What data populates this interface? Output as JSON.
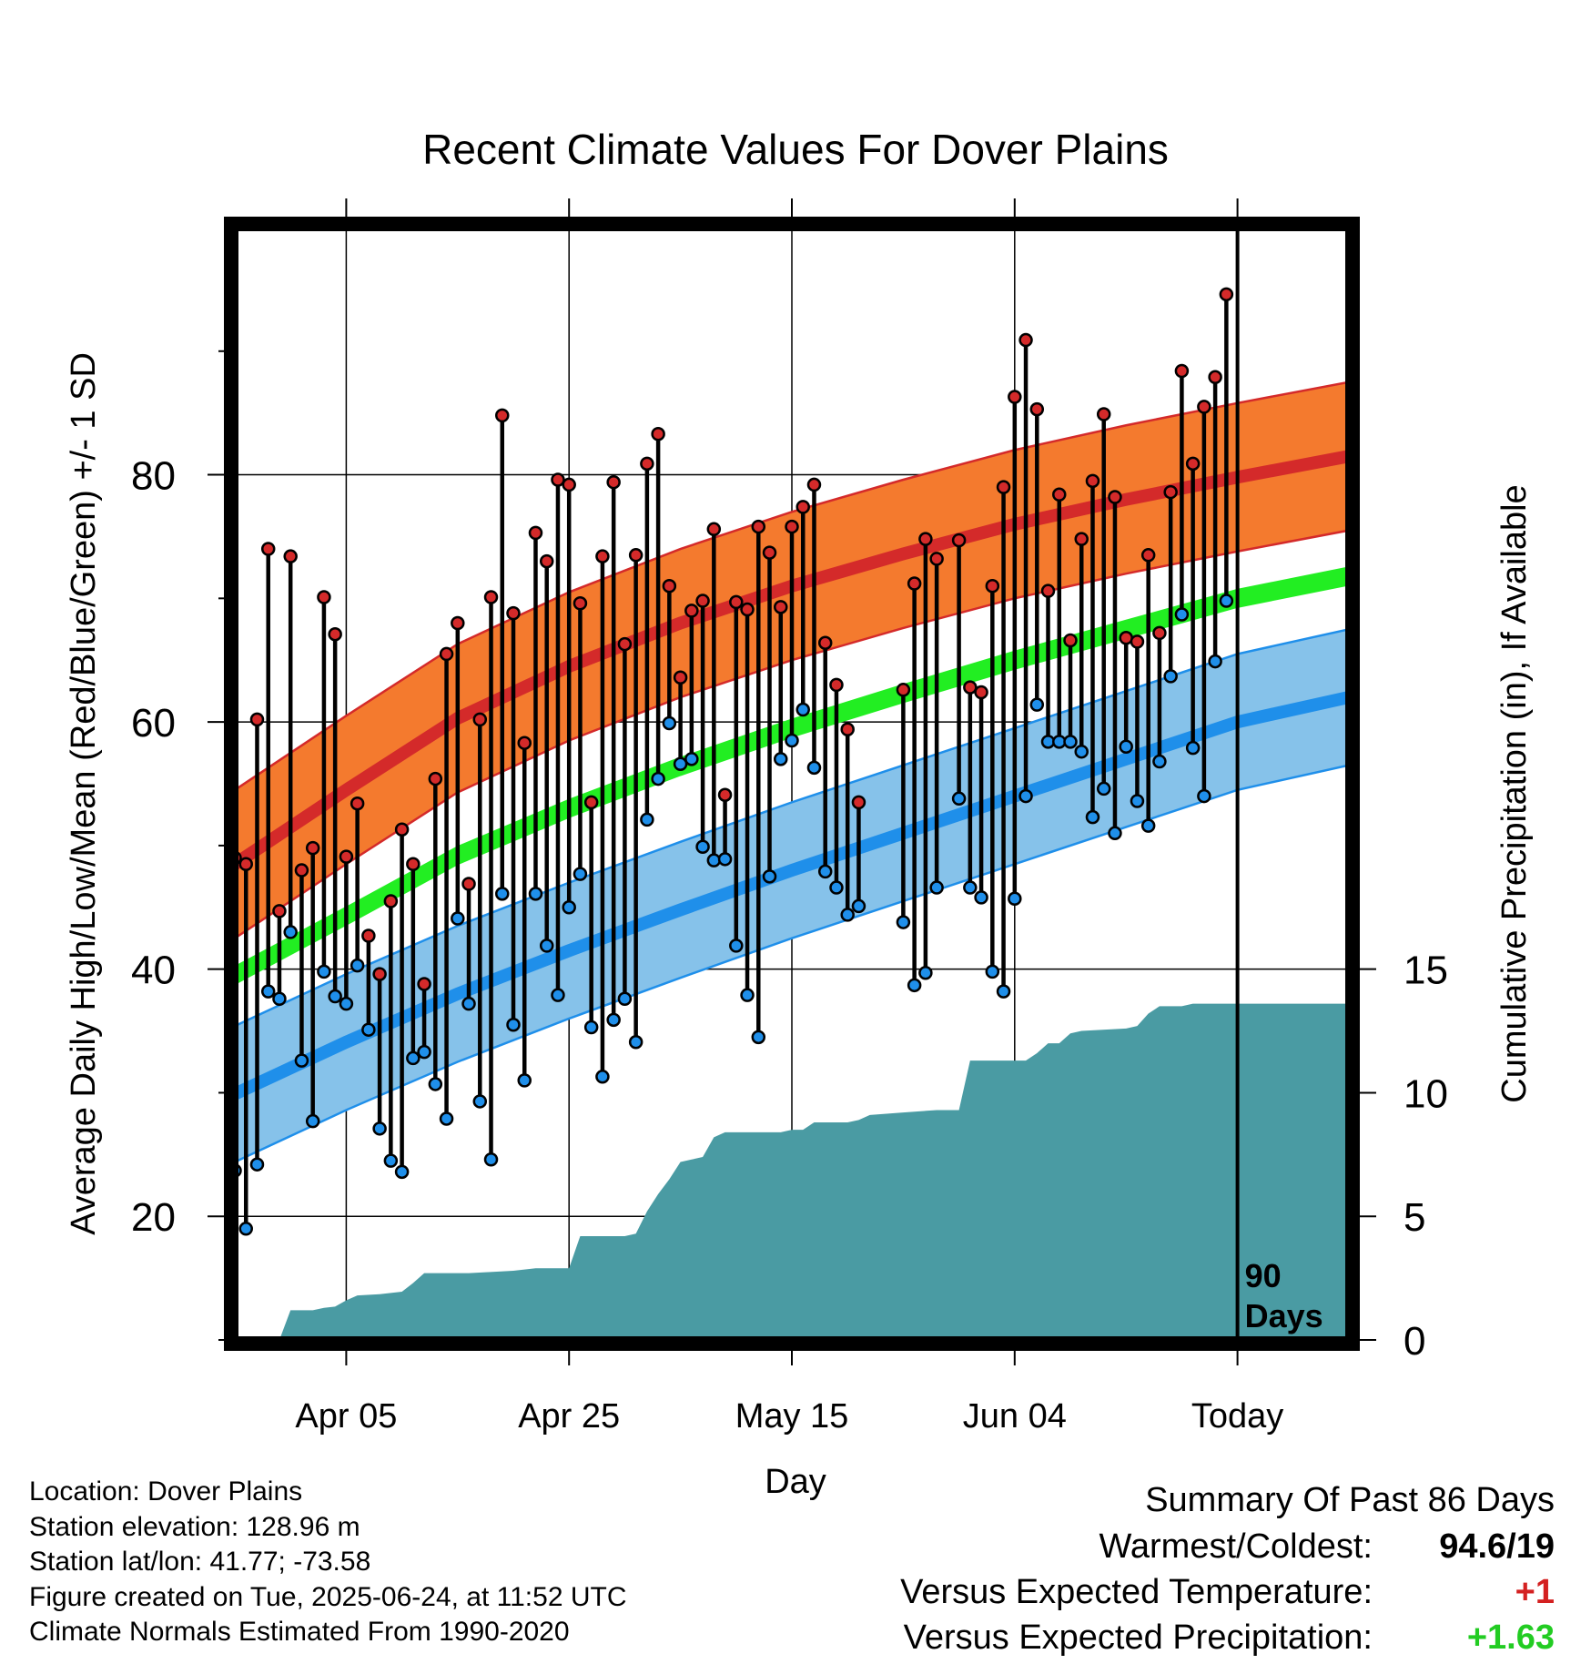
{
  "colors": {
    "high_band": "#f47a2e",
    "high_mean": "#d42a2a",
    "low_band": "#86c2ea",
    "low_mean": "#1f8fea",
    "mean_line": "#22ee22",
    "precip": "#4a9ba3",
    "warm_delta": "#d42020",
    "precip_delta": "#22cc22"
  },
  "chart_data": {
    "type": "line",
    "title": "Recent Climate Values For Dover Plains",
    "xlabel": "Day",
    "ylabel_left": "Average Daily High/Low/Mean (Red/Blue/Green) +/- 1 SD",
    "ylabel_right": "Cumulative Precipitation (in), If Available",
    "x_axis": {
      "unit": "day index (0 = Mar 16)",
      "range": [
        0,
        100
      ],
      "ticks": [
        {
          "x": 10,
          "label": "Apr 05"
        },
        {
          "x": 30,
          "label": "Apr 25"
        },
        {
          "x": 50,
          "label": "May 15"
        },
        {
          "x": 70,
          "label": "Jun 04"
        },
        {
          "x": 90,
          "label": "Today"
        }
      ]
    },
    "y_axis_left": {
      "range": [
        10,
        100
      ],
      "ticks": [
        20,
        40,
        60,
        80
      ],
      "minor_ticks": [
        10,
        30,
        50,
        70,
        90
      ]
    },
    "y_axis_right": {
      "range": [
        0,
        45
      ],
      "ticks": [
        0,
        5,
        10,
        15
      ]
    },
    "grid": true,
    "today_marker": {
      "x": 90,
      "label_line1": "90",
      "label_line2": "Days"
    },
    "normals": {
      "x": [
        0,
        10,
        20,
        30,
        40,
        50,
        60,
        70,
        80,
        90,
        100
      ],
      "high_mean": [
        48.5,
        54.5,
        60.3,
        64.5,
        68.0,
        71.0,
        73.6,
        76.0,
        78.0,
        79.8,
        81.5
      ],
      "high_sd": 6.0,
      "low_mean": [
        29.9,
        34.1,
        38.0,
        41.5,
        44.8,
        48.0,
        51.0,
        54.0,
        57.0,
        60.0,
        62.0
      ],
      "low_sd": 5.5,
      "mean": [
        39.5,
        44.3,
        49.2,
        53.0,
        56.4,
        59.5,
        62.3,
        65.0,
        67.5,
        70.0,
        71.8
      ],
      "mean_line_half_width": 0.7
    },
    "daily": [
      {
        "x": 0,
        "high": 49.0,
        "low": 23.7
      },
      {
        "x": 1,
        "high": 48.5,
        "low": 19.0
      },
      {
        "x": 2,
        "high": 60.2,
        "low": 24.2
      },
      {
        "x": 3,
        "high": 74.0,
        "low": 38.2
      },
      {
        "x": 4,
        "high": 44.7,
        "low": 37.6
      },
      {
        "x": 5,
        "high": 73.4,
        "low": 43.0
      },
      {
        "x": 6,
        "high": 48.0,
        "low": 32.6
      },
      {
        "x": 7,
        "high": 49.8,
        "low": 27.7
      },
      {
        "x": 8,
        "high": 70.1,
        "low": 39.8
      },
      {
        "x": 9,
        "high": 67.1,
        "low": 37.8
      },
      {
        "x": 10,
        "high": 49.1,
        "low": 37.2
      },
      {
        "x": 11,
        "high": 53.4,
        "low": 40.3
      },
      {
        "x": 12,
        "high": 42.7,
        "low": 35.1
      },
      {
        "x": 13,
        "high": 39.6,
        "low": 27.1
      },
      {
        "x": 14,
        "high": 45.5,
        "low": 24.5
      },
      {
        "x": 15,
        "high": 51.3,
        "low": 23.6
      },
      {
        "x": 16,
        "high": 48.5,
        "low": 32.8
      },
      {
        "x": 17,
        "high": 38.8,
        "low": 33.3
      },
      {
        "x": 18,
        "high": 55.4,
        "low": 30.7
      },
      {
        "x": 19,
        "high": 65.5,
        "low": 27.9
      },
      {
        "x": 20,
        "high": 68.0,
        "low": 44.1
      },
      {
        "x": 21,
        "high": 46.9,
        "low": 37.2
      },
      {
        "x": 22,
        "high": 60.2,
        "low": 29.3
      },
      {
        "x": 23,
        "high": 70.1,
        "low": 24.6
      },
      {
        "x": 24,
        "high": 84.8,
        "low": 46.1
      },
      {
        "x": 25,
        "high": 68.8,
        "low": 35.5
      },
      {
        "x": 26,
        "high": 58.3,
        "low": 31.0
      },
      {
        "x": 27,
        "high": 75.3,
        "low": 46.1
      },
      {
        "x": 28,
        "high": 73.0,
        "low": 41.9
      },
      {
        "x": 29,
        "high": 79.6,
        "low": 37.9
      },
      {
        "x": 30,
        "high": 79.2,
        "low": 45.0
      },
      {
        "x": 31,
        "high": 69.6,
        "low": 47.7
      },
      {
        "x": 32,
        "high": 53.5,
        "low": 35.3
      },
      {
        "x": 33,
        "high": 73.4,
        "low": 31.3
      },
      {
        "x": 34,
        "high": 79.4,
        "low": 35.9
      },
      {
        "x": 35,
        "high": 66.3,
        "low": 37.6
      },
      {
        "x": 36,
        "high": 73.5,
        "low": 34.1
      },
      {
        "x": 37,
        "high": 80.9,
        "low": 52.1
      },
      {
        "x": 38,
        "high": 83.3,
        "low": 55.4
      },
      {
        "x": 39,
        "high": 71.0,
        "low": 59.9
      },
      {
        "x": 40,
        "high": 63.6,
        "low": 56.6
      },
      {
        "x": 41,
        "high": 69.0,
        "low": 57.0
      },
      {
        "x": 42,
        "high": 69.8,
        "low": 49.9
      },
      {
        "x": 43,
        "high": 75.6,
        "low": 48.8
      },
      {
        "x": 44,
        "high": 54.1,
        "low": 48.9
      },
      {
        "x": 45,
        "high": 69.7,
        "low": 41.9
      },
      {
        "x": 46,
        "high": 69.1,
        "low": 37.9
      },
      {
        "x": 47,
        "high": 75.8,
        "low": 34.5
      },
      {
        "x": 48,
        "high": 73.7,
        "low": 47.5
      },
      {
        "x": 49,
        "high": 69.3,
        "low": 57.0
      },
      {
        "x": 50,
        "high": 75.8,
        "low": 58.5
      },
      {
        "x": 51,
        "high": 77.4,
        "low": 61.0
      },
      {
        "x": 52,
        "high": 79.2,
        "low": 56.3
      },
      {
        "x": 53,
        "high": 66.4,
        "low": 47.9
      },
      {
        "x": 54,
        "high": 63.0,
        "low": 46.6
      },
      {
        "x": 55,
        "high": 59.4,
        "low": 44.4
      },
      {
        "x": 56,
        "high": 53.5,
        "low": 45.1
      },
      {
        "x": 60,
        "high": 62.6,
        "low": 43.8
      },
      {
        "x": 61,
        "high": 71.2,
        "low": 38.7
      },
      {
        "x": 62,
        "high": 74.8,
        "low": 39.7
      },
      {
        "x": 63,
        "high": 73.2,
        "low": 46.6
      },
      {
        "x": 65,
        "high": 74.7,
        "low": 53.8
      },
      {
        "x": 66,
        "high": 62.8,
        "low": 46.6
      },
      {
        "x": 67,
        "high": 62.4,
        "low": 45.8
      },
      {
        "x": 68,
        "high": 71.0,
        "low": 39.8
      },
      {
        "x": 69,
        "high": 79.0,
        "low": 38.2
      },
      {
        "x": 70,
        "high": 86.3,
        "low": 45.7
      },
      {
        "x": 71,
        "high": 90.9,
        "low": 54.0
      },
      {
        "x": 72,
        "high": 85.3,
        "low": 61.4
      },
      {
        "x": 73,
        "high": 70.6,
        "low": 58.4
      },
      {
        "x": 74,
        "high": 78.4,
        "low": 58.4
      },
      {
        "x": 75,
        "high": 66.6,
        "low": 58.4
      },
      {
        "x": 76,
        "high": 74.8,
        "low": 57.6
      },
      {
        "x": 77,
        "high": 79.5,
        "low": 52.3
      },
      {
        "x": 78,
        "high": 84.9,
        "low": 54.6
      },
      {
        "x": 79,
        "high": 78.2,
        "low": 51.0
      },
      {
        "x": 80,
        "high": 66.8,
        "low": 58.0
      },
      {
        "x": 81,
        "high": 66.5,
        "low": 53.6
      },
      {
        "x": 82,
        "high": 73.5,
        "low": 51.6
      },
      {
        "x": 83,
        "high": 67.2,
        "low": 56.8
      },
      {
        "x": 84,
        "high": 78.6,
        "low": 63.7
      },
      {
        "x": 85,
        "high": 88.4,
        "low": 68.7
      },
      {
        "x": 86,
        "high": 80.9,
        "low": 57.9
      },
      {
        "x": 87,
        "high": 85.5,
        "low": 54.0
      },
      {
        "x": 88,
        "high": 87.9,
        "low": 64.9
      },
      {
        "x": 89,
        "high": 94.6,
        "low": 69.8
      }
    ],
    "precip_cumulative": [
      {
        "x": 0,
        "y": 0.0
      },
      {
        "x": 4,
        "y": 0.0
      },
      {
        "x": 5,
        "y": 1.2
      },
      {
        "x": 7,
        "y": 1.2
      },
      {
        "x": 8,
        "y": 1.3
      },
      {
        "x": 9,
        "y": 1.35
      },
      {
        "x": 10,
        "y": 1.6
      },
      {
        "x": 11,
        "y": 1.8
      },
      {
        "x": 13,
        "y": 1.85
      },
      {
        "x": 15,
        "y": 1.95
      },
      {
        "x": 16,
        "y": 2.3
      },
      {
        "x": 17,
        "y": 2.7
      },
      {
        "x": 21,
        "y": 2.7
      },
      {
        "x": 25,
        "y": 2.8
      },
      {
        "x": 27,
        "y": 2.9
      },
      {
        "x": 30,
        "y": 2.9
      },
      {
        "x": 31,
        "y": 4.2
      },
      {
        "x": 35,
        "y": 4.2
      },
      {
        "x": 36,
        "y": 4.3
      },
      {
        "x": 37,
        "y": 5.2
      },
      {
        "x": 38,
        "y": 5.9
      },
      {
        "x": 39,
        "y": 6.5
      },
      {
        "x": 40,
        "y": 7.2
      },
      {
        "x": 41,
        "y": 7.3
      },
      {
        "x": 42,
        "y": 7.4
      },
      {
        "x": 43,
        "y": 8.2
      },
      {
        "x": 44,
        "y": 8.4
      },
      {
        "x": 49,
        "y": 8.4
      },
      {
        "x": 50,
        "y": 8.5
      },
      {
        "x": 51,
        "y": 8.5
      },
      {
        "x": 52,
        "y": 8.8
      },
      {
        "x": 55,
        "y": 8.8
      },
      {
        "x": 56,
        "y": 8.9
      },
      {
        "x": 57,
        "y": 9.1
      },
      {
        "x": 60,
        "y": 9.2
      },
      {
        "x": 63,
        "y": 9.3
      },
      {
        "x": 65,
        "y": 9.3
      },
      {
        "x": 66,
        "y": 11.3
      },
      {
        "x": 70,
        "y": 11.3
      },
      {
        "x": 71,
        "y": 11.3
      },
      {
        "x": 72,
        "y": 11.6
      },
      {
        "x": 73,
        "y": 12.0
      },
      {
        "x": 74,
        "y": 12.0
      },
      {
        "x": 75,
        "y": 12.4
      },
      {
        "x": 76,
        "y": 12.5
      },
      {
        "x": 80,
        "y": 12.6
      },
      {
        "x": 81,
        "y": 12.7
      },
      {
        "x": 82,
        "y": 13.2
      },
      {
        "x": 83,
        "y": 13.5
      },
      {
        "x": 85,
        "y": 13.5
      },
      {
        "x": 86,
        "y": 13.6
      },
      {
        "x": 100,
        "y": 13.6
      }
    ]
  },
  "location": {
    "location": "Location: Dover Plains",
    "elevation": "Station elevation: 128.96 m",
    "latlon": "Station lat/lon: 41.77; -73.58",
    "created": "Figure created on Tue, 2025-06-24, at 11:52 UTC",
    "normals": "Climate Normals Estimated From 1990-2020"
  },
  "summary": {
    "title": "Summary Of Past 86 Days",
    "warm_cold_label": "Warmest/Coldest:",
    "warm_cold_value": "94.6/19",
    "temp_label": "Versus Expected Temperature:",
    "temp_value": "+1",
    "precip_label": "Versus Expected Precipitation:",
    "precip_value": "+1.63"
  }
}
